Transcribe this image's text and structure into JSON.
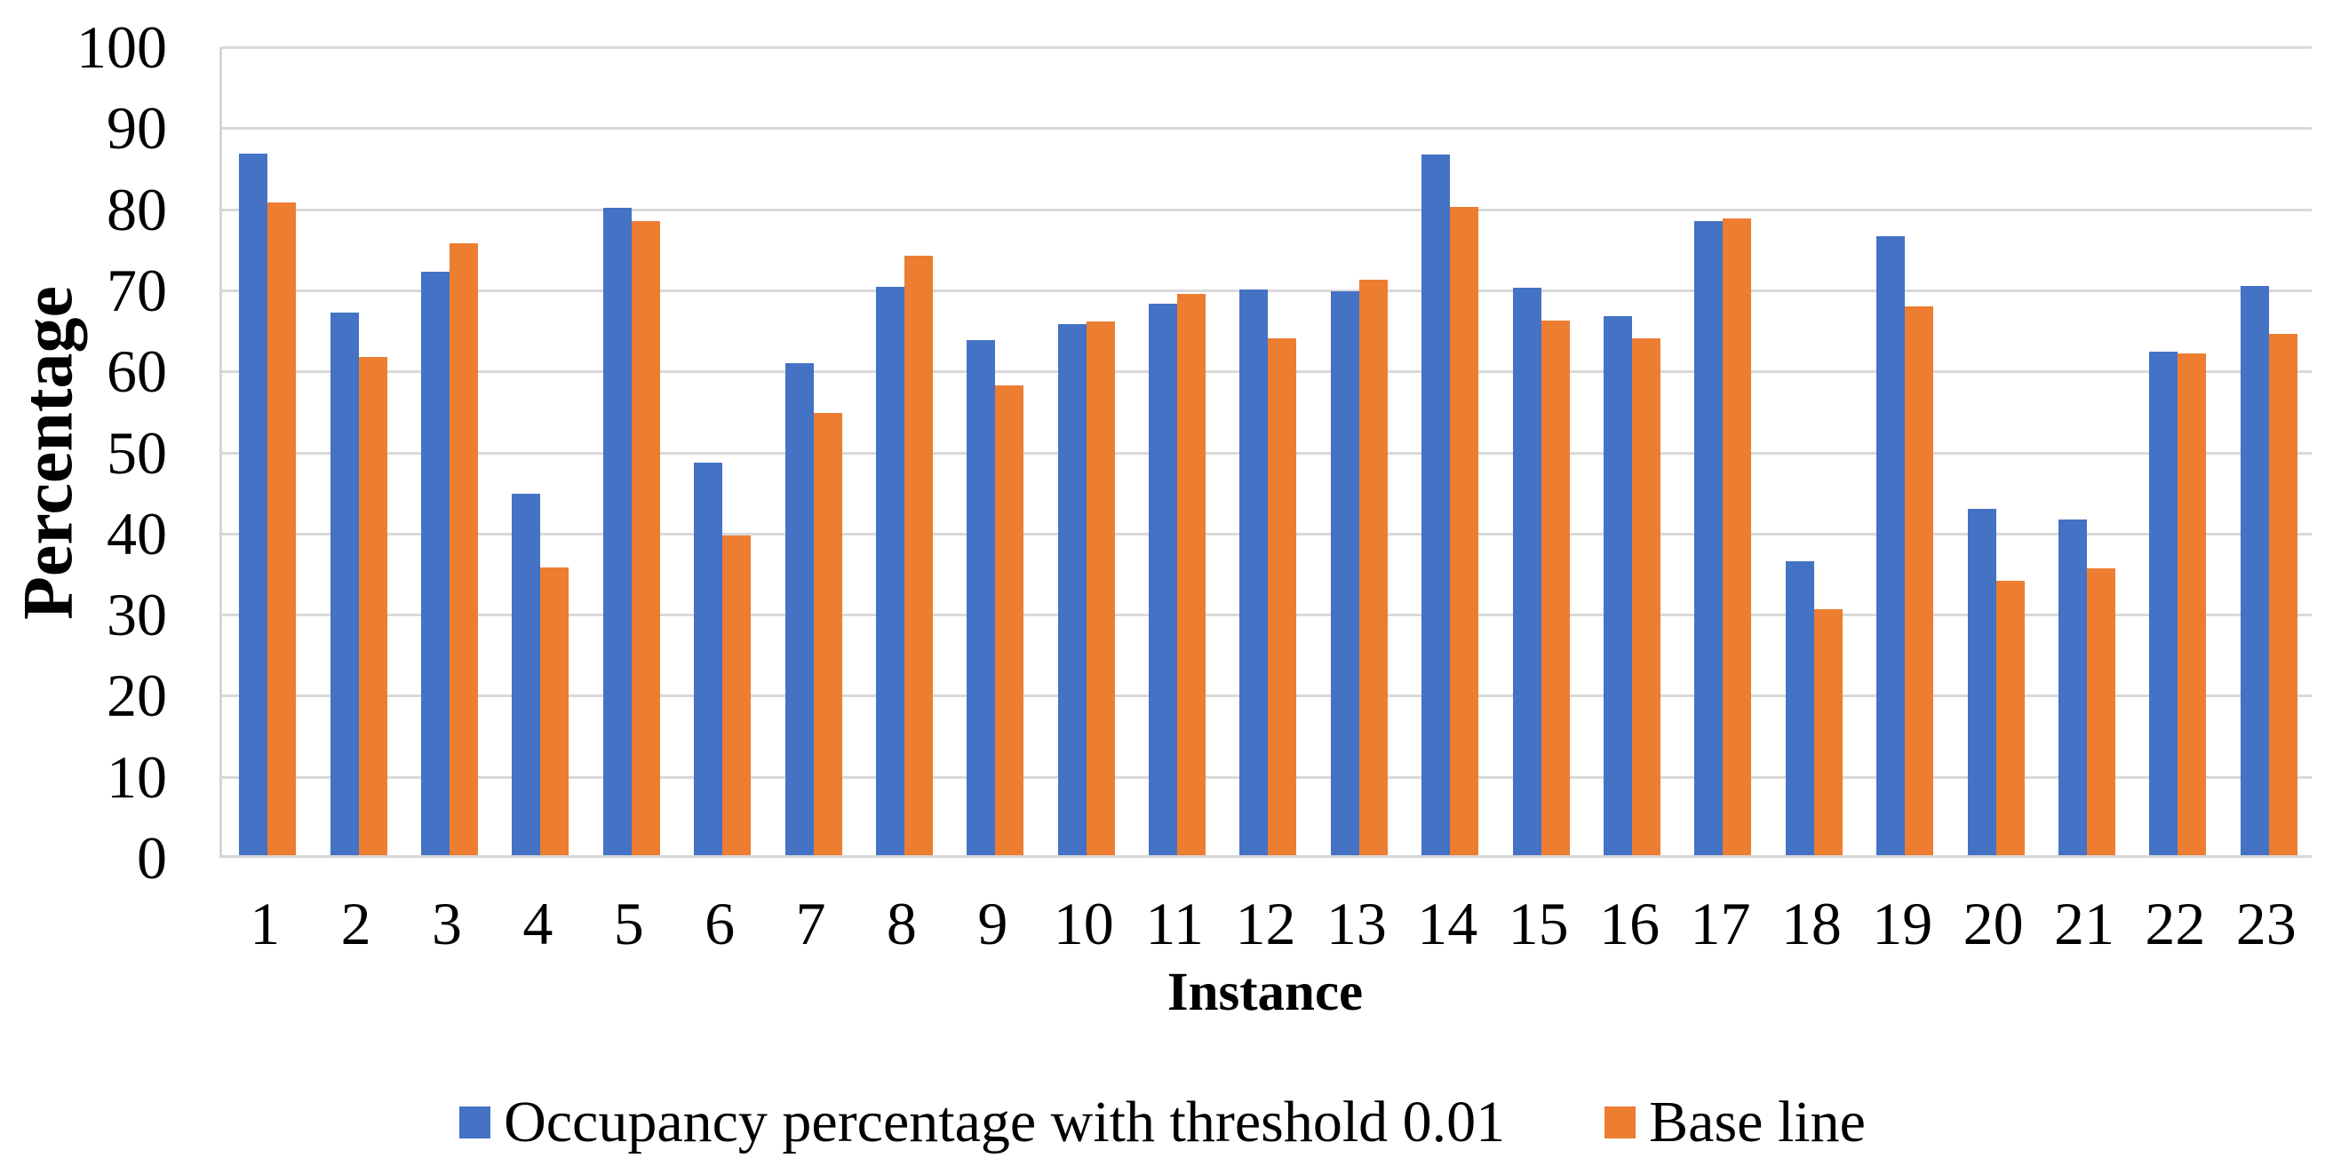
{
  "chart_data": {
    "type": "bar",
    "title": "",
    "xlabel": "Instance",
    "ylabel": "Percentage",
    "ylim": [
      0,
      100
    ],
    "ytick_step": 10,
    "y_ticks": [
      "0",
      "10",
      "20",
      "30",
      "40",
      "50",
      "60",
      "70",
      "80",
      "90",
      "100"
    ],
    "grid": true,
    "legend_position": "bottom",
    "categories": [
      "1",
      "2",
      "3",
      "4",
      "5",
      "6",
      "7",
      "8",
      "9",
      "10",
      "11",
      "12",
      "13",
      "14",
      "15",
      "16",
      "17",
      "18",
      "19",
      "20",
      "21",
      "22",
      "23"
    ],
    "series": [
      {
        "name": "Occupancy percentage with threshold 0.01",
        "color": "#4472C4",
        "values": [
          86.5,
          66.9,
          72.0,
          44.6,
          79.8,
          48.4,
          60.7,
          70.1,
          63.5,
          65.5,
          68.0,
          69.8,
          69.5,
          86.4,
          70.0,
          66.5,
          78.2,
          36.3,
          76.3,
          42.7,
          41.4,
          62.1,
          70.2
        ]
      },
      {
        "name": "Base line",
        "color": "#ED7D31",
        "values": [
          80.5,
          61.4,
          75.5,
          35.5,
          78.2,
          39.4,
          54.6,
          73.9,
          57.9,
          65.8,
          69.2,
          63.7,
          71.0,
          80.0,
          65.9,
          63.8,
          78.5,
          30.3,
          67.7,
          33.8,
          35.4,
          61.9,
          64.3
        ]
      }
    ],
    "colors": {
      "background": "#FFFFFF",
      "gridline": "#D9D9D9",
      "text": "#000000"
    }
  }
}
